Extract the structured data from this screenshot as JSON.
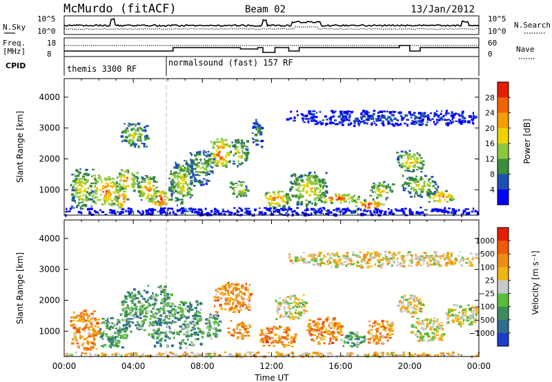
{
  "header": {
    "station": "McMurdo (fitACF)",
    "beam": "Beam 02",
    "date": "13/Jan/2012"
  },
  "noise_panel": {
    "left_label": "N.Sky",
    "right_label": "N.Search",
    "left_ticks": [
      "10^5",
      "10^0"
    ],
    "right_ticks": [
      "10^5",
      "10^0"
    ]
  },
  "freq_panel": {
    "left_label_line1": "Freq.",
    "left_label_line2": "[MHz]",
    "right_label": "Nave",
    "left_ticks": [
      "18",
      "8"
    ],
    "right_ticks": [
      "60",
      "0"
    ]
  },
  "cpid_panel": {
    "label": "CPID",
    "segments": [
      {
        "name": "themis 3300 RF",
        "start_hour": 0
      },
      {
        "name": "normalsound (fast) 157 RF",
        "start_hour": 6
      }
    ]
  },
  "colors": {
    "power_scale": [
      "#0000ff",
      "#1e50b4",
      "#3c8c3c",
      "#8cc83c",
      "#f0d200",
      "#f5a000",
      "#f06400",
      "#e61e00"
    ],
    "velocity_scale": [
      "#1e3cc8",
      "#2d6e8c",
      "#3c8c5a",
      "#5abe3c",
      "#c8c8c8",
      "#f0b414",
      "#f08c14",
      "#f05a0a",
      "#e61e00"
    ]
  },
  "chart_data": [
    {
      "type": "heatmap",
      "name": "power",
      "ylabel": "Slant Range [km]",
      "xlabel": "",
      "x_ticks": [
        "00:00",
        "04:00",
        "08:00",
        "12:00",
        "16:00",
        "20:00",
        "00:00"
      ],
      "y_ticks": [
        "1000",
        "2000",
        "3000",
        "4000"
      ],
      "xlim": [
        0,
        24
      ],
      "ylim": [
        180,
        4600
      ],
      "colorbar_label": "Power [dB]",
      "colorbar_ticks": [
        "4",
        "8",
        "12",
        "16",
        "20",
        "24",
        "28"
      ],
      "colorbar_range": [
        0,
        32
      ],
      "regions": [
        {
          "t0": 0.3,
          "t1": 1.6,
          "r0": 400,
          "r1": 1700,
          "level": 0.55
        },
        {
          "t0": 1.5,
          "t1": 3.2,
          "r0": 500,
          "r1": 1500,
          "level": 0.75
        },
        {
          "t0": 2.9,
          "t1": 3.6,
          "r0": 450,
          "r1": 1000,
          "level": 0.9
        },
        {
          "t0": 3.0,
          "t1": 4.2,
          "r0": 1000,
          "r1": 1700,
          "level": 0.7
        },
        {
          "t0": 3.2,
          "t1": 4.8,
          "r0": 2400,
          "r1": 3200,
          "level": 0.45
        },
        {
          "t0": 4.2,
          "t1": 5.4,
          "r0": 600,
          "r1": 1500,
          "level": 0.65
        },
        {
          "t0": 5.0,
          "t1": 6.0,
          "r0": 450,
          "r1": 1000,
          "level": 0.95
        },
        {
          "t0": 6.0,
          "t1": 7.5,
          "r0": 500,
          "r1": 2000,
          "level": 0.5
        },
        {
          "t0": 7.2,
          "t1": 8.6,
          "r0": 1200,
          "r1": 2300,
          "level": 0.4
        },
        {
          "t0": 8.4,
          "t1": 9.6,
          "r0": 1700,
          "r1": 2700,
          "level": 0.8
        },
        {
          "t0": 9.6,
          "t1": 10.6,
          "r0": 1800,
          "r1": 2700,
          "level": 0.5
        },
        {
          "t0": 9.5,
          "t1": 10.6,
          "r0": 800,
          "r1": 1300,
          "level": 0.55
        },
        {
          "t0": 10.8,
          "t1": 11.4,
          "r0": 2400,
          "r1": 3300,
          "level": 0.3
        },
        {
          "t0": 11.4,
          "t1": 13.0,
          "r0": 450,
          "r1": 1000,
          "level": 0.75
        },
        {
          "t0": 13.0,
          "t1": 15.2,
          "r0": 500,
          "r1": 1600,
          "level": 0.55
        },
        {
          "t0": 14.5,
          "t1": 17.0,
          "r0": 600,
          "r1": 900,
          "level": 0.8
        },
        {
          "t0": 16.8,
          "t1": 18.4,
          "r0": 350,
          "r1": 700,
          "level": 0.9
        },
        {
          "t0": 17.6,
          "t1": 19.0,
          "r0": 700,
          "r1": 1300,
          "level": 0.55
        },
        {
          "t0": 19.2,
          "t1": 20.8,
          "r0": 1600,
          "r1": 2300,
          "level": 0.6
        },
        {
          "t0": 19.5,
          "t1": 21.6,
          "r0": 800,
          "r1": 1500,
          "level": 0.5
        },
        {
          "t0": 21.0,
          "t1": 22.5,
          "r0": 600,
          "r1": 1000,
          "level": 0.75
        },
        {
          "t0": 12.8,
          "t1": 24.0,
          "r0": 3100,
          "r1": 3600,
          "level": 0.15
        },
        {
          "t0": 0.0,
          "t1": 24.0,
          "r0": 200,
          "r1": 450,
          "level": 0.1
        }
      ]
    },
    {
      "type": "heatmap",
      "name": "velocity",
      "ylabel": "Slant Range [km]",
      "xlabel": "Time UT",
      "x_ticks": [
        "00:00",
        "04:00",
        "08:00",
        "12:00",
        "16:00",
        "20:00",
        "00:00"
      ],
      "y_ticks": [
        "1000",
        "2000",
        "3000",
        "4000"
      ],
      "xlim": [
        0,
        24
      ],
      "ylim": [
        180,
        4600
      ],
      "colorbar_label": "Velocity [m s⁻¹]",
      "colorbar_ticks": [
        "1000",
        "500",
        "100",
        "25",
        "−25",
        "−100",
        "−500",
        "−1000"
      ],
      "regions": [
        {
          "t0": 0.3,
          "t1": 2.0,
          "r0": 400,
          "r1": 1700,
          "level": 0.7
        },
        {
          "t0": 2.0,
          "t1": 3.6,
          "r0": 500,
          "r1": 1500,
          "level": 0.3
        },
        {
          "t0": 3.2,
          "t1": 4.8,
          "r0": 1000,
          "r1": 2400,
          "level": 0.3
        },
        {
          "t0": 4.8,
          "t1": 6.2,
          "r0": 500,
          "r1": 2500,
          "level": 0.3
        },
        {
          "t0": 6.2,
          "t1": 8.0,
          "r0": 500,
          "r1": 2000,
          "level": 0.32
        },
        {
          "t0": 8.0,
          "t1": 9.0,
          "r0": 800,
          "r1": 1600,
          "level": 0.35
        },
        {
          "t0": 8.6,
          "t1": 10.8,
          "r0": 1600,
          "r1": 2600,
          "level": 0.7
        },
        {
          "t0": 9.4,
          "t1": 10.8,
          "r0": 800,
          "r1": 1400,
          "level": 0.68
        },
        {
          "t0": 11.2,
          "t1": 13.4,
          "r0": 500,
          "r1": 1200,
          "level": 0.72
        },
        {
          "t0": 12.2,
          "t1": 14.0,
          "r0": 1400,
          "r1": 2200,
          "level": 0.5
        },
        {
          "t0": 14.0,
          "t1": 16.0,
          "r0": 600,
          "r1": 1500,
          "level": 0.72
        },
        {
          "t0": 16.0,
          "t1": 17.4,
          "r0": 500,
          "r1": 1000,
          "level": 0.32
        },
        {
          "t0": 17.4,
          "t1": 19.0,
          "r0": 600,
          "r1": 1400,
          "level": 0.7
        },
        {
          "t0": 19.2,
          "t1": 20.8,
          "r0": 1600,
          "r1": 2200,
          "level": 0.55
        },
        {
          "t0": 20.0,
          "t1": 22.0,
          "r0": 700,
          "r1": 1500,
          "level": 0.5
        },
        {
          "t0": 22.0,
          "t1": 24.0,
          "r0": 1200,
          "r1": 1900,
          "level": 0.5
        },
        {
          "t0": 12.8,
          "t1": 24.0,
          "r0": 3100,
          "r1": 3600,
          "level": 0.55
        },
        {
          "t0": 0.0,
          "t1": 24.0,
          "r0": 200,
          "r1": 350,
          "level": 0.6
        }
      ]
    }
  ]
}
